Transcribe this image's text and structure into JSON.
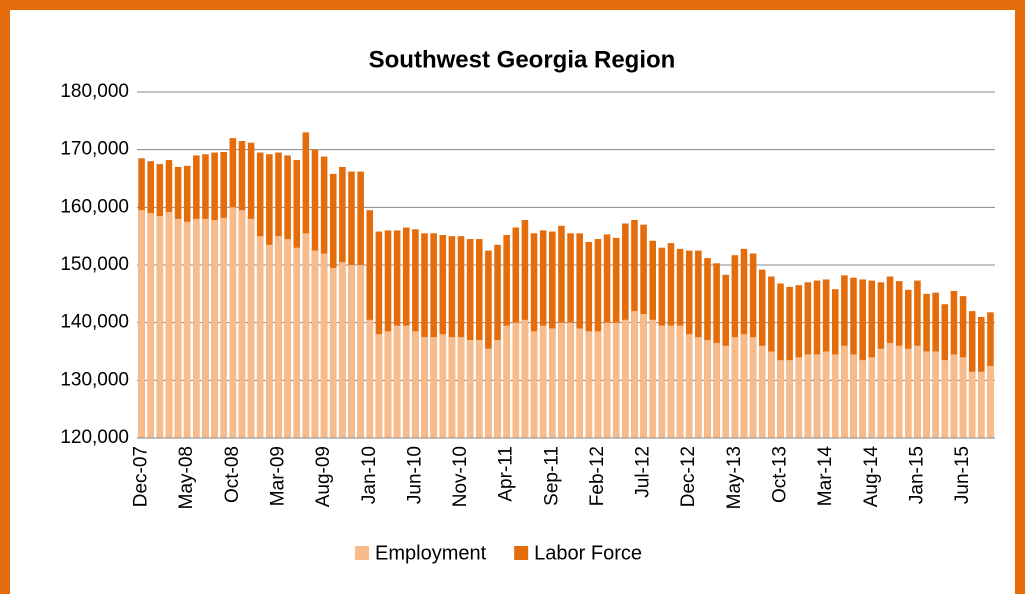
{
  "chart_data": {
    "type": "bar",
    "title": "Southwest Georgia Region",
    "categories": [
      "Dec-07",
      null,
      null,
      null,
      null,
      "May-08",
      null,
      null,
      null,
      null,
      "Oct-08",
      null,
      null,
      null,
      null,
      "Mar-09",
      null,
      null,
      null,
      null,
      "Aug-09",
      null,
      null,
      null,
      null,
      "Jan-10",
      null,
      null,
      null,
      null,
      "Jun-10",
      null,
      null,
      null,
      null,
      "Nov-10",
      null,
      null,
      null,
      null,
      "Apr-11",
      null,
      null,
      null,
      null,
      "Sep-11",
      null,
      null,
      null,
      null,
      "Feb-12",
      null,
      null,
      null,
      null,
      "Jul-12",
      null,
      null,
      null,
      null,
      "Dec-12",
      null,
      null,
      null,
      null,
      "May-13",
      null,
      null,
      null,
      null,
      "Oct-13",
      null,
      null,
      null,
      null,
      "Mar-14",
      null,
      null,
      null,
      null,
      "Aug-14",
      null,
      null,
      null,
      null,
      "Jan-15",
      null,
      null,
      null,
      null,
      "Jun-15",
      null,
      null,
      null
    ],
    "series": [
      {
        "name": "Employment",
        "color": "#f8bb8c",
        "values": [
          159500,
          159000,
          158500,
          159200,
          158000,
          157500,
          158000,
          158000,
          157800,
          158200,
          160000,
          159500,
          158000,
          155000,
          153500,
          155000,
          154500,
          153000,
          155500,
          152500,
          152000,
          149500,
          150500,
          150000,
          150000,
          140500,
          138000,
          138500,
          139500,
          139500,
          138500,
          137500,
          137500,
          138000,
          137500,
          137500,
          137000,
          137000,
          135500,
          137000,
          139500,
          140000,
          140500,
          138500,
          139500,
          139000,
          140000,
          140000,
          139000,
          138500,
          138500,
          140000,
          140000,
          140500,
          142000,
          141500,
          140500,
          139500,
          139500,
          139500,
          138000,
          137500,
          137000,
          136500,
          136000,
          137500,
          138000,
          137500,
          136000,
          135000,
          133500,
          133500,
          134000,
          134500,
          134500,
          135000,
          134500,
          136000,
          134500,
          133500,
          134000,
          135500,
          136500,
          136000,
          135500,
          136000,
          135000,
          135000,
          133500,
          134500,
          134000,
          131500,
          131500,
          132500
        ]
      },
      {
        "name": "Labor Force",
        "color": "#e46c0a",
        "values": [
          168500,
          168000,
          167500,
          168200,
          167000,
          167200,
          169000,
          169200,
          169500,
          169600,
          172000,
          171500,
          171200,
          169500,
          169200,
          169500,
          169000,
          168200,
          173000,
          170000,
          168800,
          165800,
          167000,
          166200,
          166200,
          159500,
          155800,
          156000,
          156000,
          156500,
          156200,
          155500,
          155500,
          155200,
          155000,
          155000,
          154500,
          154500,
          152500,
          153500,
          155200,
          156500,
          157800,
          155500,
          156000,
          155800,
          156800,
          155500,
          155500,
          154000,
          154500,
          155300,
          154700,
          157200,
          157800,
          157000,
          154200,
          153000,
          153800,
          152800,
          152500,
          152500,
          151200,
          150300,
          148300,
          151700,
          152800,
          152000,
          149200,
          148000,
          146800,
          146200,
          146500,
          147000,
          147300,
          147500,
          145800,
          148200,
          147800,
          147500,
          147300,
          147000,
          148000,
          147200,
          145700,
          147300,
          145000,
          145200,
          143200,
          145500,
          144600,
          142000,
          141000,
          141800
        ]
      }
    ],
    "ylim": [
      120000,
      180000
    ],
    "yticks": [
      {
        "value": 120000,
        "label": "120,000"
      },
      {
        "value": 130000,
        "label": "130,000"
      },
      {
        "value": 140000,
        "label": "140,000"
      },
      {
        "value": 150000,
        "label": "150,000"
      },
      {
        "value": 160000,
        "label": "160,000"
      },
      {
        "value": 170000,
        "label": "170,000"
      },
      {
        "value": 180000,
        "label": "180,000"
      }
    ],
    "grid": true,
    "legend": "bottom"
  }
}
